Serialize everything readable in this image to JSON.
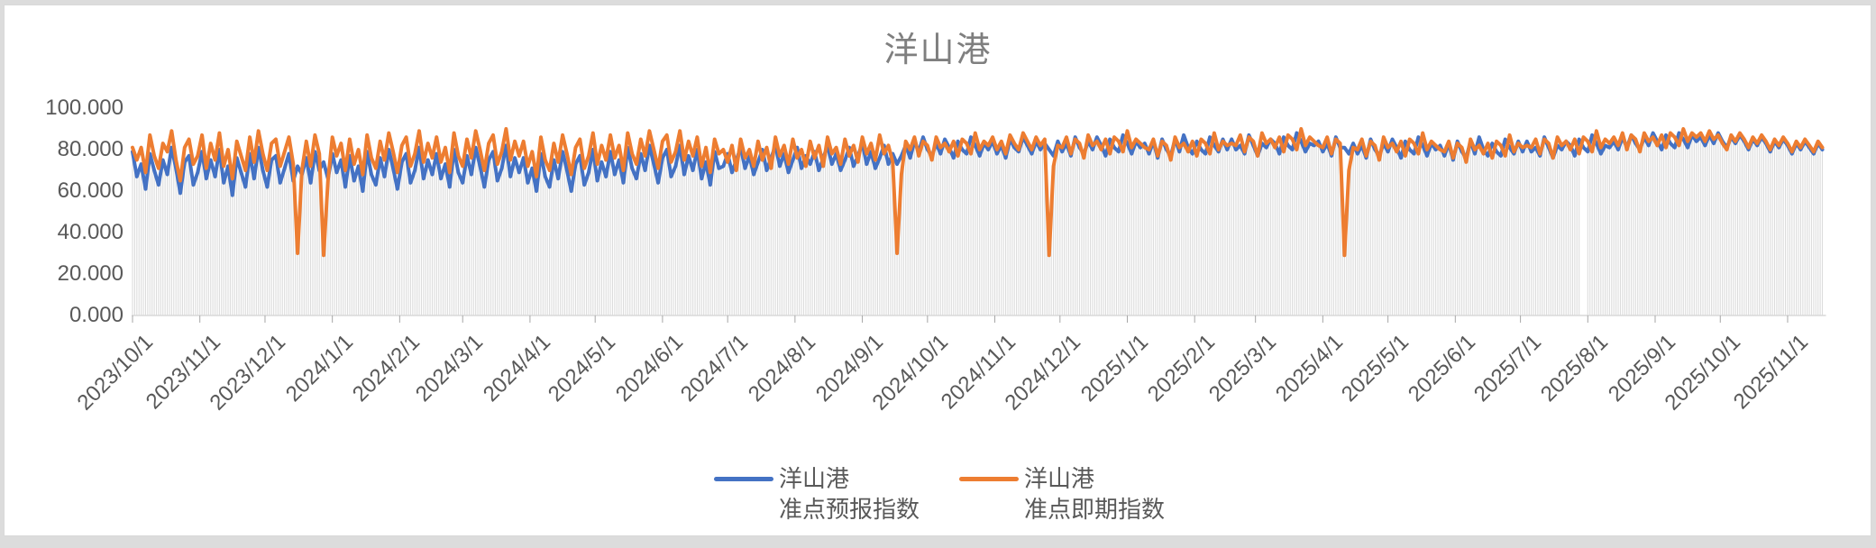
{
  "title": "洋山港",
  "y_axis": {
    "tick_labels": [
      "100.000",
      "80.000",
      "60.000",
      "40.000",
      "20.000",
      "0.000"
    ]
  },
  "legend": {
    "items": [
      {
        "line1": "洋山港",
        "line2": "准点预报指数",
        "color": "#4472C4"
      },
      {
        "line1": "洋山港",
        "line2": "准点即期指数",
        "color": "#ED7D31"
      }
    ]
  },
  "chart_data": {
    "type": "line",
    "title": "洋山港",
    "x_start": "2023/10/1",
    "x_step_days": 2,
    "ylim": [
      0,
      100
    ],
    "y_tick_labels": [
      "100.000",
      "80.000",
      "60.000",
      "40.000",
      "20.000",
      "0.000"
    ],
    "x_tick_labels": [
      "2023/10/1",
      "2023/11/1",
      "2023/12/1",
      "2024/1/1",
      "2024/2/1",
      "2024/3/1",
      "2024/4/1",
      "2024/5/1",
      "2024/6/1",
      "2024/7/1",
      "2024/8/1",
      "2024/9/1",
      "2024/10/1",
      "2024/11/1",
      "2024/12/1",
      "2025/1/1",
      "2025/2/1",
      "2025/3/1",
      "2025/4/1",
      "2025/5/1",
      "2025/6/1",
      "2025/7/1",
      "2025/8/1",
      "2025/9/1",
      "2025/10/1",
      "2025/11/1"
    ],
    "grid": "daily vertical drop lines under series, no horizontal gridlines",
    "legend_position": "bottom",
    "gap_index": 334,
    "series": [
      {
        "name": "洋山港 准点预报指数",
        "color": "#4472C4",
        "values": [
          79,
          67,
          73,
          61,
          78,
          70,
          63,
          75,
          68,
          81,
          71,
          59,
          74,
          77,
          63,
          69,
          79,
          66,
          75,
          67,
          80,
          64,
          72,
          58,
          76,
          69,
          62,
          78,
          66,
          81,
          70,
          62,
          75,
          77,
          64,
          71,
          78,
          65,
          72,
          68,
          76,
          64,
          79,
          70,
          74,
          66,
          78,
          69,
          75,
          62,
          77,
          65,
          72,
          60,
          79,
          68,
          63,
          76,
          67,
          80,
          71,
          61,
          74,
          78,
          64,
          70,
          81,
          66,
          75,
          68,
          78,
          66,
          73,
          62,
          80,
          69,
          64,
          77,
          68,
          81,
          72,
          62,
          75,
          79,
          65,
          71,
          82,
          67,
          76,
          69,
          76,
          64,
          71,
          60,
          78,
          67,
          62,
          75,
          66,
          79,
          70,
          60,
          73,
          77,
          63,
          69,
          80,
          65,
          74,
          67,
          79,
          68,
          75,
          64,
          81,
          71,
          66,
          78,
          70,
          82,
          73,
          64,
          76,
          80,
          67,
          72,
          82,
          68,
          77,
          70,
          80,
          66,
          74,
          63,
          79,
          71,
          72,
          78,
          69,
          75,
          81,
          71,
          77,
          68,
          74,
          80,
          70,
          76,
          82,
          72,
          78,
          69,
          75,
          81,
          71,
          77,
          73,
          79,
          70,
          76,
          82,
          73,
          78,
          70,
          75,
          81,
          72,
          77,
          83,
          73,
          79,
          71,
          76,
          82,
          73,
          78,
          73,
          77,
          82,
          76,
          84,
          79,
          86,
          80,
          77,
          83,
          78,
          85,
          81,
          76,
          84,
          80,
          78,
          86,
          82,
          77,
          83,
          80,
          84,
          78,
          82,
          76,
          85,
          81,
          79,
          86,
          82,
          78,
          84,
          80,
          83,
          80,
          77,
          84,
          79,
          83,
          77,
          86,
          81,
          78,
          84,
          80,
          86,
          82,
          77,
          85,
          81,
          79,
          87,
          83,
          78,
          84,
          81,
          83,
          78,
          84,
          76,
          85,
          80,
          77,
          85,
          79,
          87,
          81,
          78,
          84,
          80,
          78,
          86,
          82,
          79,
          85,
          80,
          85,
          80,
          82,
          78,
          87,
          82,
          77,
          83,
          81,
          85,
          83,
          78,
          86,
          82,
          80,
          88,
          84,
          79,
          83,
          82,
          84,
          79,
          83,
          77,
          86,
          81,
          81,
          78,
          83,
          78,
          82,
          76,
          85,
          80,
          77,
          83,
          79,
          85,
          81,
          76,
          84,
          80,
          78,
          86,
          82,
          77,
          83,
          80,
          82,
          77,
          83,
          75,
          84,
          79,
          76,
          84,
          78,
          86,
          80,
          77,
          83,
          79,
          77,
          85,
          81,
          78,
          84,
          79,
          84,
          79,
          81,
          77,
          86,
          81,
          76,
          82,
          80,
          84,
          82,
          77,
          85,
          81,
          79,
          87,
          83,
          78,
          82,
          81,
          84,
          80,
          86,
          81,
          87,
          83,
          80,
          86,
          82,
          88,
          84,
          80,
          87,
          83,
          81,
          88,
          85,
          81,
          87,
          84,
          86,
          82,
          87,
          83,
          88,
          84,
          81,
          86,
          83,
          87,
          84,
          80,
          85,
          82,
          86,
          83,
          79,
          84,
          81,
          85,
          82,
          78,
          83,
          80,
          84,
          81,
          78,
          83,
          80
        ]
      },
      {
        "name": "洋山港 准点即期指数",
        "color": "#ED7D31",
        "values": [
          81,
          75,
          81,
          69,
          87,
          77,
          71,
          83,
          79,
          89,
          75,
          65,
          81,
          85,
          73,
          77,
          87,
          71,
          83,
          75,
          88,
          72,
          80,
          66,
          84,
          77,
          70,
          86,
          74,
          89,
          78,
          70,
          83,
          85,
          72,
          79,
          86,
          73,
          30,
          70,
          84,
          72,
          87,
          78,
          29,
          65,
          86,
          77,
          83,
          70,
          85,
          73,
          80,
          68,
          87,
          76,
          71,
          84,
          75,
          88,
          79,
          69,
          82,
          86,
          72,
          78,
          89,
          74,
          83,
          76,
          86,
          74,
          81,
          69,
          88,
          77,
          72,
          85,
          76,
          89,
          80,
          70,
          83,
          87,
          73,
          79,
          90,
          75,
          84,
          77,
          84,
          72,
          79,
          67,
          86,
          75,
          70,
          83,
          74,
          87,
          78,
          68,
          81,
          85,
          71,
          77,
          88,
          73,
          82,
          75,
          87,
          76,
          82,
          70,
          88,
          78,
          73,
          85,
          77,
          89,
          80,
          71,
          84,
          87,
          74,
          79,
          89,
          75,
          84,
          77,
          86,
          72,
          81,
          69,
          85,
          78,
          80,
          74,
          82,
          70,
          85,
          76,
          80,
          72,
          84,
          75,
          81,
          71,
          86,
          77,
          82,
          73,
          85,
          76,
          80,
          72,
          84,
          76,
          82,
          72,
          86,
          78,
          81,
          73,
          85,
          77,
          82,
          74,
          86,
          78,
          83,
          75,
          87,
          78,
          82,
          74,
          30,
          68,
          84,
          80,
          86,
          77,
          84,
          82,
          75,
          86,
          81,
          83,
          79,
          84,
          77,
          85,
          83,
          78,
          88,
          80,
          84,
          82,
          86,
          80,
          84,
          78,
          87,
          83,
          80,
          88,
          84,
          80,
          86,
          82,
          85,
          29,
          72,
          82,
          81,
          86,
          78,
          85,
          83,
          76,
          87,
          82,
          84,
          80,
          85,
          78,
          86,
          84,
          79,
          89,
          81,
          85,
          83,
          81,
          80,
          85,
          77,
          84,
          82,
          75,
          86,
          81,
          83,
          79,
          84,
          77,
          85,
          83,
          78,
          88,
          80,
          84,
          82,
          83,
          82,
          87,
          79,
          86,
          84,
          77,
          88,
          83,
          85,
          81,
          86,
          79,
          87,
          85,
          80,
          90,
          82,
          86,
          84,
          82,
          81,
          86,
          78,
          85,
          83,
          29,
          70,
          81,
          80,
          85,
          77,
          84,
          82,
          75,
          86,
          81,
          83,
          79,
          84,
          77,
          85,
          83,
          78,
          88,
          80,
          84,
          82,
          80,
          79,
          84,
          76,
          83,
          81,
          74,
          85,
          80,
          82,
          78,
          83,
          76,
          84,
          82,
          77,
          87,
          79,
          83,
          81,
          82,
          81,
          85,
          78,
          85,
          83,
          76,
          86,
          82,
          84,
          80,
          85,
          78,
          86,
          84,
          79,
          89,
          81,
          85,
          83,
          86,
          82,
          88,
          80,
          87,
          85,
          79,
          88,
          84,
          86,
          82,
          87,
          81,
          88,
          86,
          82,
          90,
          84,
          88,
          86,
          88,
          84,
          89,
          85,
          87,
          83,
          80,
          87,
          84,
          88,
          85,
          81,
          86,
          83,
          87,
          84,
          80,
          85,
          82,
          86,
          83,
          79,
          84,
          81,
          85,
          82,
          79,
          84,
          81
        ]
      }
    ]
  }
}
